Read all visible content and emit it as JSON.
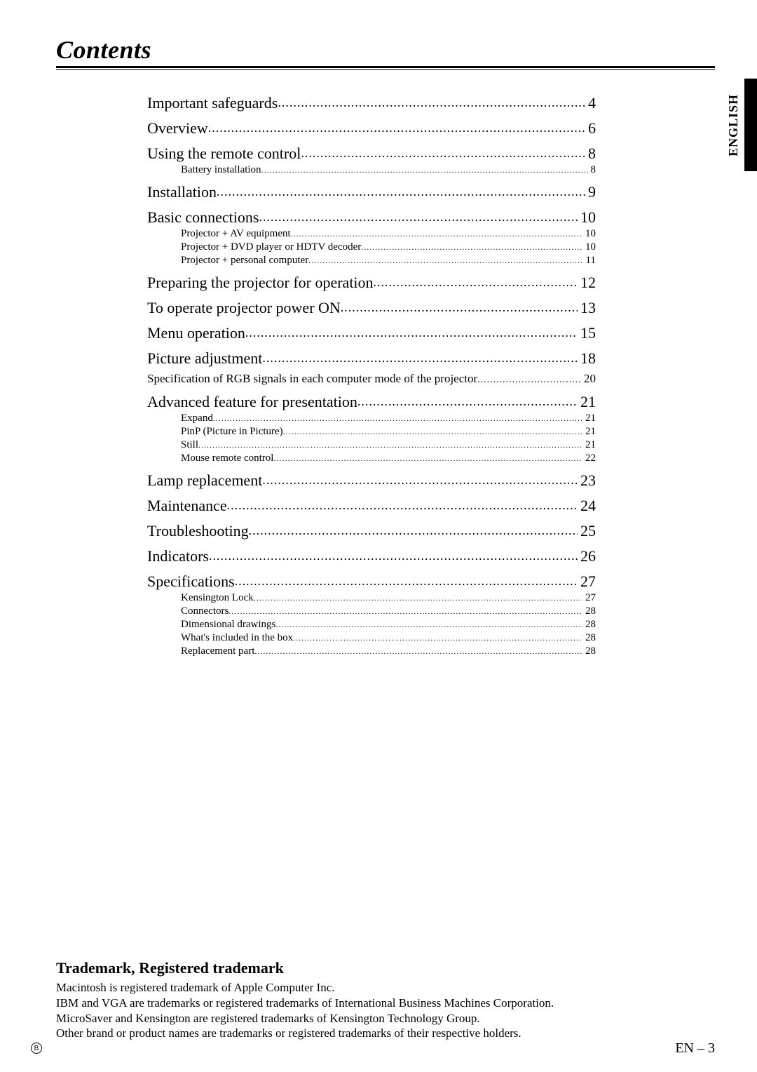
{
  "title": "Contents",
  "side_label": "ENGLISH",
  "side_tab_color": "#000000",
  "toc": [
    {
      "level": "lvl1",
      "label": "Important safeguards",
      "page": "4"
    },
    {
      "level": "lvl1",
      "label": "Overview",
      "page": "6"
    },
    {
      "level": "lvl1",
      "label": "Using the remote control",
      "page": "8"
    },
    {
      "level": "lvl2",
      "label": "Battery installation",
      "page": "8"
    },
    {
      "level": "lvl1",
      "label": "Installation",
      "page": "9"
    },
    {
      "level": "lvl1",
      "label": "Basic connections",
      "page": "10"
    },
    {
      "level": "lvl2",
      "label": "Projector + AV equipment",
      "page": "10"
    },
    {
      "level": "lvl2",
      "label": "Projector + DVD player or HDTV decoder",
      "page": "10"
    },
    {
      "level": "lvl2",
      "label": "Projector + personal computer",
      "page": "11"
    },
    {
      "level": "lvl1",
      "label": "Preparing the projector for operation",
      "page": "12"
    },
    {
      "level": "lvl1",
      "label": "To operate projector power ON",
      "page": "13"
    },
    {
      "level": "lvl1",
      "label": "Menu operation",
      "page": "15"
    },
    {
      "level": "lvl1",
      "label": "Picture adjustment",
      "page": "18"
    },
    {
      "level": "lvl1b",
      "label": "Specification of RGB signals in each computer mode of the projector",
      "page": "20"
    },
    {
      "level": "lvl1",
      "label": "Advanced feature for presentation",
      "page": "21"
    },
    {
      "level": "lvl2",
      "label": "Expand",
      "page": "21"
    },
    {
      "level": "lvl2",
      "label": "PinP (Picture in Picture)",
      "page": "21"
    },
    {
      "level": "lvl2",
      "label": "Still",
      "page": "21"
    },
    {
      "level": "lvl2",
      "label": "Mouse remote control",
      "page": "22"
    },
    {
      "level": "lvl1",
      "label": "Lamp replacement",
      "page": "23"
    },
    {
      "level": "lvl1",
      "label": "Maintenance",
      "page": "24"
    },
    {
      "level": "lvl1",
      "label": "Troubleshooting",
      "page": "25"
    },
    {
      "level": "lvl1",
      "label": "Indicators",
      "page": "26"
    },
    {
      "level": "lvl1",
      "label": "Specifications",
      "page": "27"
    },
    {
      "level": "lvl2",
      "label": "Kensington Lock",
      "page": "27"
    },
    {
      "level": "lvl2",
      "label": "Connectors",
      "page": "28"
    },
    {
      "level": "lvl2",
      "label": "Dimensional drawings",
      "page": "28"
    },
    {
      "level": "lvl2",
      "label": "What's included in the box",
      "page": "28"
    },
    {
      "level": "lvl2",
      "label": "Replacement part",
      "page": "28"
    }
  ],
  "trademark": {
    "heading": "Trademark, Registered trademark",
    "lines": [
      "Macintosh is registered trademark of Apple Computer Inc.",
      "IBM and VGA are trademarks or registered trademarks of International Business Machines Corporation.",
      "MicroSaver and Kensington are registered trademarks of Kensington Technology Group.",
      "Other brand or product names are trademarks or registered trademarks of their respective holders."
    ]
  },
  "page_number": "EN – 3",
  "circle_mark": "B"
}
